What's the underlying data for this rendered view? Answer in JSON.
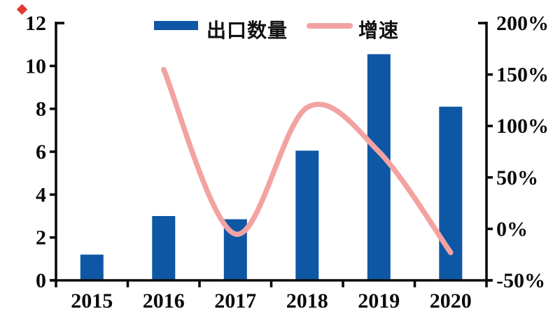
{
  "legend": {
    "bar_label": "出口数量",
    "line_label": "增速"
  },
  "chart_data": {
    "type": "bar",
    "subtype": "bar+line-combo",
    "categories": [
      "2015",
      "2016",
      "2017",
      "2018",
      "2019",
      "2020"
    ],
    "series": [
      {
        "name": "出口数量",
        "type": "bar",
        "axis": "left",
        "values": [
          1.2,
          3.0,
          2.85,
          6.05,
          10.55,
          8.1
        ]
      },
      {
        "name": "增速",
        "type": "line",
        "axis": "right",
        "unit": "%",
        "values": [
          null,
          155,
          -5,
          118,
          75,
          -23
        ]
      }
    ],
    "left_axis": {
      "min": 0,
      "max": 12,
      "ticks": [
        "0",
        "2",
        "4",
        "6",
        "8",
        "10",
        "12"
      ]
    },
    "right_axis": {
      "min": -50,
      "max": 200,
      "ticks": [
        "-50%",
        "0%",
        "50%",
        "100%",
        "150%",
        "200%"
      ]
    },
    "title": "",
    "xlabel": "",
    "ylabel_left": "",
    "ylabel_right": "",
    "grid": false,
    "legend_position": "top-center",
    "colors": {
      "bar": "#0E57A5",
      "line": "#F2A3A1",
      "axis": "#0b0b0b",
      "marker": "#e03c34"
    }
  }
}
